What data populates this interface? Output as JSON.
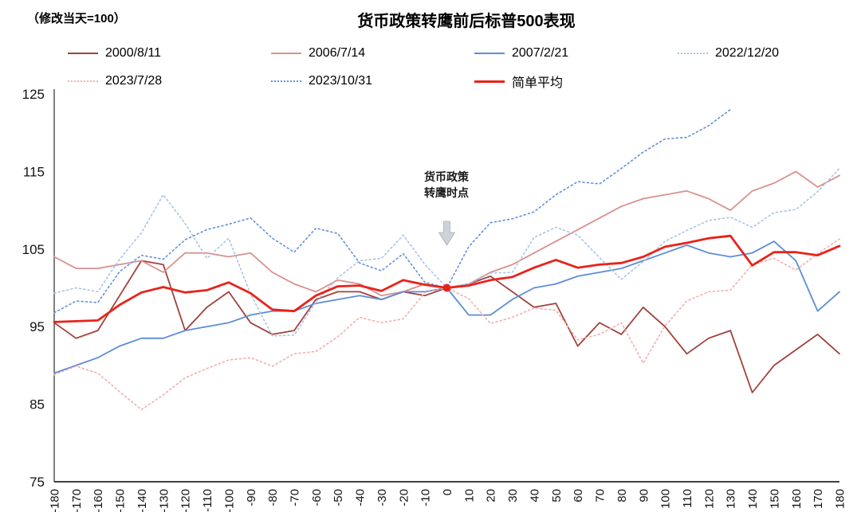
{
  "header": {
    "unit_note": "（修改当天=100）",
    "title": "货币政策转鹰前后标普500表现"
  },
  "chart_data": {
    "type": "line",
    "title": "货币政策转鹰前后标普500表现",
    "unit_note": "（修改当天=100）",
    "xlabel": "",
    "ylabel": "",
    "xlim": [
      -180,
      180
    ],
    "ylim": [
      75,
      125
    ],
    "yticks": [
      75,
      85,
      95,
      105,
      115,
      125
    ],
    "xticks": [
      -180,
      -170,
      -160,
      -150,
      -140,
      -130,
      -120,
      -110,
      -100,
      -90,
      -80,
      -70,
      -60,
      -50,
      -40,
      -30,
      -20,
      -10,
      0,
      10,
      20,
      30,
      40,
      50,
      60,
      70,
      80,
      90,
      100,
      110,
      120,
      130,
      140,
      150,
      160,
      170,
      180
    ],
    "grid": false,
    "legend_position": "top",
    "x": [
      -180,
      -170,
      -160,
      -150,
      -140,
      -130,
      -120,
      -110,
      -100,
      -90,
      -80,
      -70,
      -60,
      -50,
      -40,
      -30,
      -20,
      -10,
      0,
      10,
      20,
      30,
      40,
      50,
      60,
      70,
      80,
      90,
      100,
      110,
      120,
      130,
      140,
      150,
      160,
      170,
      180
    ],
    "series": [
      {
        "name": "2000/8/11",
        "line": "solid",
        "color": "#A1423C",
        "width": 1.8,
        "values": [
          95.5,
          93.5,
          94.5,
          99,
          103.5,
          103,
          94.5,
          97.5,
          99.5,
          95.5,
          94,
          94.5,
          98.5,
          99.5,
          99.5,
          98.5,
          99.5,
          99,
          100,
          100.5,
          101.5,
          99.5,
          97.5,
          98,
          92.5,
          95.5,
          94,
          97.5,
          95,
          91.5,
          93.5,
          94.5,
          86.5,
          90,
          92,
          94,
          91.5
        ]
      },
      {
        "name": "2006/7/14",
        "line": "solid",
        "color": "#D9918E",
        "width": 1.8,
        "values": [
          104,
          102.5,
          102.5,
          103,
          103.5,
          102,
          104.5,
          104.5,
          104,
          104.5,
          102,
          100.5,
          99.5,
          101,
          100.5,
          99,
          99.5,
          100.5,
          100,
          100.5,
          102,
          103,
          104.5,
          106,
          107.5,
          109,
          110.5,
          111.5,
          112,
          112.5,
          111.5,
          110,
          112.5,
          113.5,
          115,
          113,
          114.5
        ]
      },
      {
        "name": "2007/2/21",
        "line": "solid",
        "color": "#5C8DD5",
        "width": 1.8,
        "values": [
          89,
          90,
          91,
          92.5,
          93.5,
          93.5,
          94.5,
          95,
          95.5,
          96.5,
          97,
          97,
          98,
          98.5,
          99,
          98.5,
          99.5,
          99.5,
          100,
          96.5,
          96.5,
          98.5,
          100,
          100.5,
          101.5,
          102,
          102.5,
          103.5,
          104.5,
          105.5,
          104.5,
          104,
          104.5,
          106,
          103.5,
          97,
          99.5
        ]
      },
      {
        "name": "2022/12/20",
        "line": "dotted",
        "color": "#A9C3E6",
        "width": 1.6,
        "values": [
          99.3,
          100,
          99.5,
          103.7,
          107.1,
          112,
          108.3,
          103.8,
          106.4,
          99.2,
          93.8,
          93.9,
          98.2,
          101.3,
          103.5,
          103.8,
          106.8,
          103,
          100,
          100.5,
          101.9,
          102,
          106.5,
          107.8,
          106.8,
          103.9,
          101.1,
          103.4,
          106,
          107.4,
          108.7,
          109.1,
          107.8,
          109.7,
          110.1,
          112.4,
          115.4
        ]
      },
      {
        "name": "2023/7/28",
        "line": "dotted",
        "color": "#F0AFAD",
        "width": 1.6,
        "values": [
          88.8,
          89.9,
          89,
          86.6,
          84.3,
          86.2,
          88.4,
          89.6,
          90.7,
          91,
          89.9,
          91.5,
          91.8,
          93.7,
          96.2,
          95.5,
          96,
          99.4,
          100,
          98.6,
          95.4,
          96.2,
          97.4,
          97.1,
          93.3,
          94,
          95.5,
          90.3,
          95.1,
          98.3,
          99.5,
          99.7,
          103,
          103.8,
          102.3,
          104.4,
          106.3
        ]
      },
      {
        "name": "2023/10/31",
        "line": "dotted",
        "color": "#6390DB",
        "width": 1.6,
        "values": [
          96.8,
          98.3,
          98.1,
          102.1,
          104.2,
          103.7,
          106.2,
          107.5,
          108.2,
          109,
          106.4,
          104.6,
          107.7,
          107,
          103.2,
          102.2,
          104.4,
          100.7,
          100,
          105.3,
          108.4,
          108.9,
          109.8,
          112,
          113.7,
          113.4,
          115.4,
          117.5,
          119.2,
          119.4,
          120.9,
          123,
          null,
          null,
          null,
          null,
          null
        ]
      },
      {
        "name": "简单平均",
        "line": "solid",
        "color": "#E8231A",
        "width": 2.8,
        "values": [
          95.6,
          95.7,
          95.8,
          97.8,
          99.4,
          100.1,
          99.4,
          99.7,
          100.7,
          99.3,
          97.2,
          97,
          99,
          100.2,
          100.3,
          99.6,
          101,
          100.4,
          100,
          100.3,
          101,
          101.4,
          102.6,
          103.6,
          102.6,
          103,
          103.2,
          104,
          105.3,
          105.8,
          106.4,
          106.7,
          102.9,
          104.6,
          104.6,
          104.2,
          105.4
        ]
      }
    ],
    "marker": {
      "x": 0,
      "y": 100,
      "color": "#E8231A"
    },
    "annotation": {
      "line1": "货币政策",
      "line2": "转鹰时点",
      "arrow": "down-arrow",
      "target_x": 0,
      "target_y": 100
    }
  }
}
